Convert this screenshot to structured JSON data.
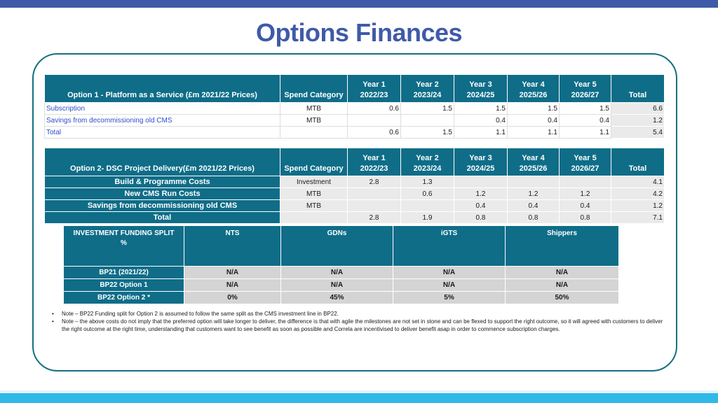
{
  "title": "Options Finances",
  "table1": {
    "header": [
      "Option 1 - Platform as a Service (£m 2021/22 Prices)",
      "Spend Category",
      "Year 1\n2022/23",
      "Year 2\n2023/24",
      "Year 3\n2024/25",
      "Year 4\n2025/26",
      "Year 5\n2026/27",
      "Total"
    ],
    "rows": [
      {
        "label": "Subscription",
        "category": "MTB",
        "values": [
          "0.6",
          "1.5",
          "1.5",
          "1.5",
          "1.5"
        ],
        "total": "6.6"
      },
      {
        "label": "Savings from decommissioning old CMS",
        "category": "MTB",
        "values": [
          "",
          "",
          "0.4",
          "0.4",
          "0.4"
        ],
        "total": "1.2"
      },
      {
        "label": "Total",
        "category": "",
        "values": [
          "0.6",
          "1.5",
          "1.1",
          "1.1",
          "1.1"
        ],
        "total": "5.4"
      }
    ]
  },
  "table2": {
    "header": [
      "Option 2- DSC Project Delivery(£m 2021/22 Prices)",
      "Spend Category",
      "Year 1\n2022/23",
      "Year 2\n2023/24",
      "Year 3\n2024/25",
      "Year 4\n2025/26",
      "Year 5\n2026/27",
      "Total"
    ],
    "rows": [
      {
        "label": "Build & Programme Costs",
        "category": "Investment",
        "values": [
          "2.8",
          "1.3",
          "",
          "",
          ""
        ],
        "total": "4.1"
      },
      {
        "label": "New CMS Run Costs",
        "category": "MTB",
        "values": [
          "",
          "0.6",
          "1.2",
          "1.2",
          "1.2"
        ],
        "total": "4.2"
      },
      {
        "label": "Savings from decommissioning old CMS",
        "category": "MTB",
        "values": [
          "",
          "",
          "0.4",
          "0.4",
          "0.4"
        ],
        "total": "1.2"
      },
      {
        "label": "Total",
        "category": "",
        "values": [
          "2.8",
          "1.9",
          "0.8",
          "0.8",
          "0.8"
        ],
        "total": "7.1"
      }
    ]
  },
  "split": {
    "header": [
      "INVESTMENT FUNDING SPLIT\n%",
      "NTS",
      "GDNs",
      "iGTS",
      "Shippers"
    ],
    "rows": [
      {
        "label": "BP21 (2021/22)",
        "values": [
          "N/A",
          "N/A",
          "N/A",
          "N/A"
        ]
      },
      {
        "label": "BP22 Option 1",
        "values": [
          "N/A",
          "N/A",
          "N/A",
          "N/A"
        ]
      },
      {
        "label": "BP22 Option 2 *",
        "values": [
          "0%",
          "45%",
          "5%",
          "50%"
        ]
      }
    ]
  },
  "notes": [
    "Note – BP22 Funding split for Option 2 is assumed to follow the same split as the CMS investment line in BP22.",
    "Note – the above costs do not imply that the preferred option will take longer to deliver, the  difference is that with agile the milestones are not set in stone and can be flexed to support the right outcome, so it will agreed with customers to deliver the right outcome at the right time, understanding that customers want to see benefit as soon as possible and Correla are incentivised to deliver benefit asap in order to commence subscription charges."
  ]
}
